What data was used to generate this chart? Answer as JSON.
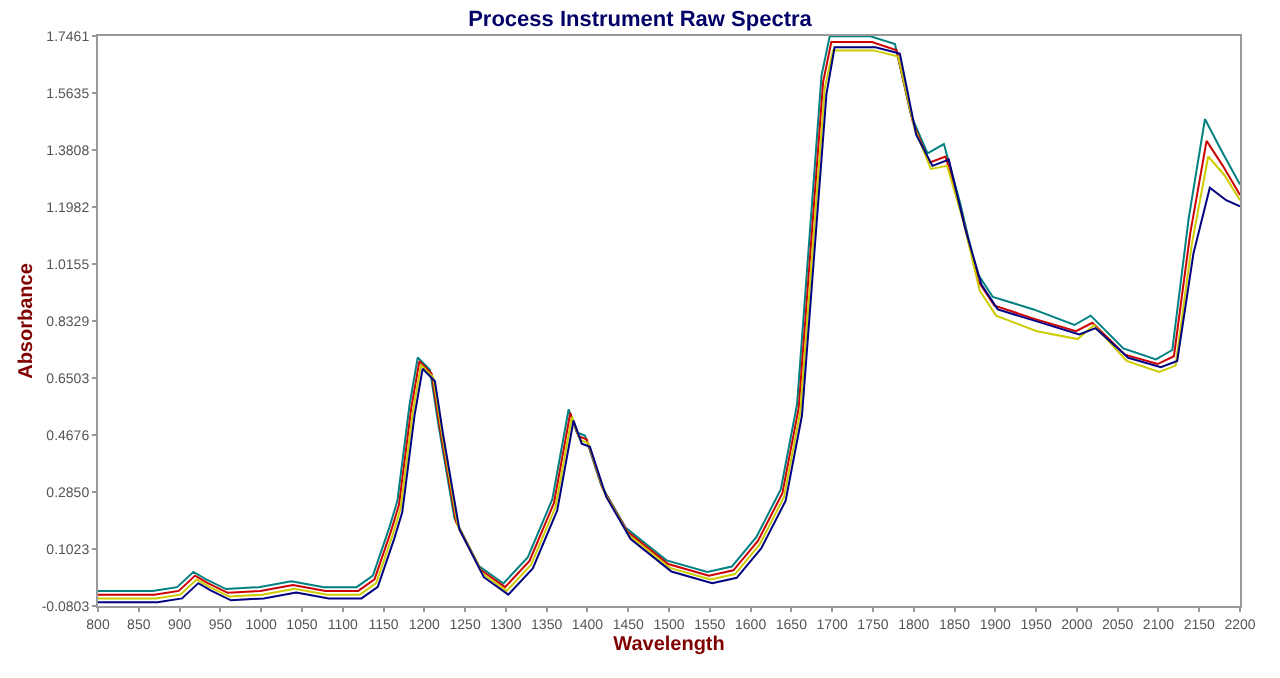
{
  "chart_data": {
    "type": "line",
    "title": "Process Instrument Raw Spectra",
    "xlabel": "Wavelength",
    "ylabel": "Absorbance",
    "series": [
      {
        "color": "#008080",
        "x": [
          800,
          867,
          897,
          917,
          932,
          957,
          997,
          1037,
          1077,
          1117,
          1137,
          1157,
          1167,
          1182,
          1192,
          1207,
          1217,
          1237,
          1267,
          1297,
          1327,
          1357,
          1377,
          1387,
          1397,
          1417,
          1447,
          1497,
          1547,
          1577,
          1607,
          1637,
          1657,
          1687,
          1697,
          1747,
          1777,
          1797,
          1817,
          1837,
          1857,
          1877,
          1897,
          1947,
          1997,
          2017,
          2057,
          2097,
          2117,
          2137,
          2157,
          2177,
          2200
        ],
        "values": [
          -0.032,
          -0.032,
          -0.02,
          0.029,
          0.006,
          -0.026,
          -0.02,
          -0.001,
          -0.02,
          -0.02,
          0.017,
          0.17,
          0.256,
          0.566,
          0.716,
          0.676,
          0.506,
          0.201,
          0.048,
          -0.008,
          0.076,
          0.262,
          0.55,
          0.476,
          0.466,
          0.306,
          0.17,
          0.066,
          0.029,
          0.046,
          0.14,
          0.293,
          0.566,
          1.62,
          1.745,
          1.745,
          1.72,
          1.49,
          1.37,
          1.4,
          1.21,
          0.99,
          0.91,
          0.87,
          0.82,
          0.85,
          0.745,
          0.71,
          0.74,
          1.16,
          1.48,
          1.38,
          1.27
        ]
      },
      {
        "color": "#cc0000",
        "x": [
          800,
          869,
          899,
          919,
          934,
          959,
          999,
          1039,
          1079,
          1119,
          1139,
          1159,
          1169,
          1184,
          1194,
          1209,
          1219,
          1239,
          1269,
          1299,
          1329,
          1359,
          1379,
          1389,
          1399,
          1419,
          1449,
          1499,
          1549,
          1579,
          1609,
          1639,
          1659,
          1689,
          1699,
          1749,
          1779,
          1799,
          1819,
          1839,
          1859,
          1879,
          1899,
          1949,
          1999,
          2019,
          2059,
          2099,
          2119,
          2139,
          2159,
          2179,
          2200
        ],
        "values": [
          -0.044,
          -0.044,
          -0.032,
          0.017,
          -0.006,
          -0.038,
          -0.032,
          -0.013,
          -0.032,
          -0.032,
          0.005,
          0.158,
          0.244,
          0.554,
          0.704,
          0.664,
          0.494,
          0.189,
          0.036,
          -0.02,
          0.064,
          0.25,
          0.538,
          0.464,
          0.454,
          0.294,
          0.158,
          0.054,
          0.017,
          0.034,
          0.128,
          0.281,
          0.554,
          1.6,
          1.727,
          1.727,
          1.7,
          1.47,
          1.34,
          1.36,
          1.176,
          0.961,
          0.882,
          0.839,
          0.8,
          0.827,
          0.725,
          0.695,
          0.72,
          1.114,
          1.41,
          1.33,
          1.237
        ]
      },
      {
        "color": "#cccc00",
        "x": [
          800,
          871,
          901,
          921,
          936,
          961,
          1001,
          1041,
          1081,
          1121,
          1141,
          1161,
          1171,
          1186,
          1196,
          1211,
          1221,
          1241,
          1271,
          1301,
          1331,
          1361,
          1381,
          1391,
          1401,
          1421,
          1451,
          1501,
          1551,
          1581,
          1611,
          1641,
          1661,
          1691,
          1701,
          1751,
          1781,
          1801,
          1821,
          1841,
          1861,
          1881,
          1901,
          1951,
          2001,
          2021,
          2061,
          2101,
          2121,
          2141,
          2161,
          2181,
          2200
        ],
        "values": [
          -0.056,
          -0.056,
          -0.044,
          0.005,
          -0.018,
          -0.05,
          -0.044,
          -0.025,
          -0.044,
          -0.044,
          -0.007,
          0.146,
          0.232,
          0.542,
          0.692,
          0.652,
          0.482,
          0.177,
          0.024,
          -0.032,
          0.052,
          0.238,
          0.526,
          0.452,
          0.442,
          0.282,
          0.146,
          0.042,
          0.005,
          0.022,
          0.116,
          0.269,
          0.542,
          1.58,
          1.7,
          1.7,
          1.68,
          1.45,
          1.32,
          1.33,
          1.15,
          0.93,
          0.85,
          0.8,
          0.775,
          0.82,
          0.705,
          0.67,
          0.69,
          1.08,
          1.36,
          1.3,
          1.22
        ]
      },
      {
        "color": "#000080",
        "x": [
          800,
          873,
          903,
          923,
          938,
          963,
          1003,
          1043,
          1083,
          1123,
          1143,
          1163,
          1173,
          1188,
          1198,
          1213,
          1223,
          1243,
          1273,
          1303,
          1333,
          1363,
          1383,
          1393,
          1403,
          1423,
          1453,
          1503,
          1553,
          1583,
          1613,
          1643,
          1663,
          1693,
          1703,
          1753,
          1783,
          1803,
          1823,
          1843,
          1863,
          1883,
          1903,
          1953,
          2003,
          2023,
          2063,
          2103,
          2123,
          2143,
          2163,
          2183,
          2200
        ],
        "values": [
          -0.068,
          -0.068,
          -0.056,
          -0.007,
          -0.03,
          -0.062,
          -0.056,
          -0.037,
          -0.056,
          -0.056,
          -0.019,
          0.134,
          0.22,
          0.53,
          0.68,
          0.64,
          0.47,
          0.165,
          0.012,
          -0.044,
          0.04,
          0.226,
          0.514,
          0.44,
          0.43,
          0.27,
          0.134,
          0.03,
          -0.007,
          0.01,
          0.104,
          0.257,
          0.53,
          1.56,
          1.71,
          1.71,
          1.69,
          1.43,
          1.33,
          1.35,
          1.13,
          0.95,
          0.87,
          0.83,
          0.79,
          0.81,
          0.715,
          0.685,
          0.705,
          1.05,
          1.26,
          1.22,
          1.2
        ]
      }
    ],
    "xlim": [
      800,
      2200
    ],
    "xticks": [
      800,
      850,
      900,
      950,
      1000,
      1050,
      1100,
      1150,
      1200,
      1250,
      1300,
      1350,
      1400,
      1450,
      1500,
      1550,
      1600,
      1650,
      1700,
      1750,
      1800,
      1850,
      1900,
      1950,
      2000,
      2050,
      2100,
      2150,
      2200
    ],
    "ylim": [
      -0.0803,
      1.7461
    ],
    "yticks": [
      -0.0803,
      0.1023,
      {
        "value": 0.285,
        "label": "0.2850"
      },
      0.4676,
      0.6503,
      0.8329,
      1.0155,
      1.1982,
      1.3808,
      1.5635,
      1.7461
    ],
    "marker": "none",
    "line_style": "solid"
  }
}
